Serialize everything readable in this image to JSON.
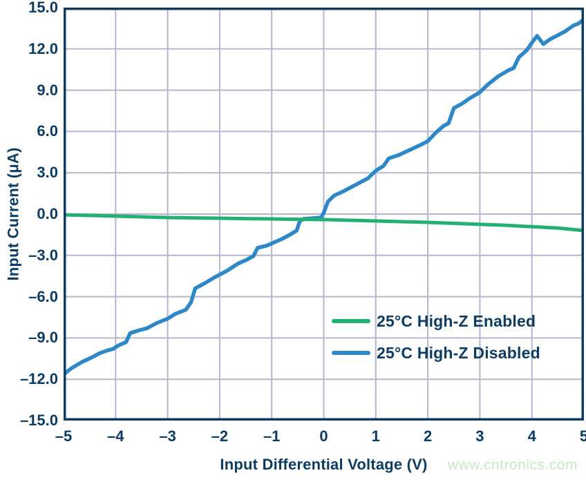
{
  "page": {
    "watermark": "www.cntronics.com"
  },
  "style": {
    "axis_color": "#0d3c63",
    "grid_color": "#b4b7cb",
    "watermark_color": "#c8e8c3",
    "background": "#ffffff"
  },
  "chart_data": {
    "type": "line",
    "title": "",
    "xlabel": "Input Differential Voltage (V)",
    "ylabel": "Input Current (μA)",
    "xlim": [
      -5,
      5
    ],
    "ylim": [
      -15,
      15
    ],
    "grid": true,
    "x_ticks": [
      -5,
      -4,
      -3,
      -2,
      -1,
      0,
      1,
      2,
      3,
      4,
      5
    ],
    "x_tick_labels": [
      "–5",
      "–4",
      "–3",
      "–2",
      "–1",
      "0",
      "1",
      "2",
      "3",
      "4",
      "5"
    ],
    "y_ticks": [
      15,
      12,
      9,
      6,
      3,
      0,
      -3,
      -6,
      -9,
      -12,
      -15
    ],
    "y_tick_labels": [
      "15.0",
      "12.0",
      "9.0",
      "6.0",
      "3.0",
      "0.0",
      "–3.0",
      "–6.0",
      "–9.0",
      "–12.0",
      "–15.0"
    ],
    "legend": {
      "position": "inside-lower-right"
    },
    "series": [
      {
        "name": "25°C High-Z Disabled",
        "color": "#2e87c6",
        "line_width": 5.5,
        "points": [
          [
            -5.0,
            -11.65
          ],
          [
            -4.85,
            -11.2
          ],
          [
            -4.65,
            -10.75
          ],
          [
            -4.45,
            -10.4
          ],
          [
            -4.3,
            -10.1
          ],
          [
            -4.15,
            -9.9
          ],
          [
            -4.05,
            -9.8
          ],
          [
            -3.95,
            -9.55
          ],
          [
            -3.8,
            -9.3
          ],
          [
            -3.72,
            -8.65
          ],
          [
            -3.55,
            -8.45
          ],
          [
            -3.4,
            -8.3
          ],
          [
            -3.2,
            -7.9
          ],
          [
            -3.0,
            -7.6
          ],
          [
            -2.85,
            -7.25
          ],
          [
            -2.65,
            -6.95
          ],
          [
            -2.55,
            -6.4
          ],
          [
            -2.47,
            -5.4
          ],
          [
            -2.3,
            -5.05
          ],
          [
            -2.1,
            -4.6
          ],
          [
            -2.0,
            -4.4
          ],
          [
            -1.85,
            -4.1
          ],
          [
            -1.65,
            -3.6
          ],
          [
            -1.5,
            -3.35
          ],
          [
            -1.35,
            -3.05
          ],
          [
            -1.27,
            -2.45
          ],
          [
            -1.1,
            -2.3
          ],
          [
            -0.95,
            -2.05
          ],
          [
            -0.8,
            -1.8
          ],
          [
            -0.65,
            -1.5
          ],
          [
            -0.52,
            -1.2
          ],
          [
            -0.46,
            -0.5
          ],
          [
            -0.38,
            -0.35
          ],
          [
            -0.2,
            -0.3
          ],
          [
            -0.05,
            -0.25
          ],
          [
            0.0,
            0.1
          ],
          [
            0.08,
            0.9
          ],
          [
            0.2,
            1.35
          ],
          [
            0.35,
            1.6
          ],
          [
            0.5,
            1.9
          ],
          [
            0.7,
            2.3
          ],
          [
            0.85,
            2.6
          ],
          [
            1.0,
            3.15
          ],
          [
            1.15,
            3.5
          ],
          [
            1.25,
            4.05
          ],
          [
            1.45,
            4.3
          ],
          [
            1.65,
            4.65
          ],
          [
            1.85,
            5.0
          ],
          [
            2.0,
            5.3
          ],
          [
            2.15,
            5.9
          ],
          [
            2.3,
            6.4
          ],
          [
            2.4,
            6.6
          ],
          [
            2.5,
            7.7
          ],
          [
            2.65,
            8.0
          ],
          [
            2.8,
            8.4
          ],
          [
            3.0,
            8.85
          ],
          [
            3.15,
            9.4
          ],
          [
            3.35,
            10.0
          ],
          [
            3.55,
            10.45
          ],
          [
            3.65,
            10.6
          ],
          [
            3.75,
            11.4
          ],
          [
            3.9,
            11.9
          ],
          [
            4.0,
            12.45
          ],
          [
            4.1,
            12.95
          ],
          [
            4.22,
            12.35
          ],
          [
            4.35,
            12.7
          ],
          [
            4.5,
            13.0
          ],
          [
            4.65,
            13.3
          ],
          [
            4.8,
            13.7
          ],
          [
            4.9,
            13.85
          ],
          [
            5.0,
            14.15
          ]
        ]
      },
      {
        "name": "25°C High-Z Enabled",
        "color": "#22b173",
        "line_width": 5,
        "points": [
          [
            -5.0,
            -0.05
          ],
          [
            -4.5,
            -0.1
          ],
          [
            -4.0,
            -0.15
          ],
          [
            -3.5,
            -0.2
          ],
          [
            -3.0,
            -0.25
          ],
          [
            -2.5,
            -0.28
          ],
          [
            -2.0,
            -0.3
          ],
          [
            -1.5,
            -0.33
          ],
          [
            -1.0,
            -0.35
          ],
          [
            -0.5,
            -0.38
          ],
          [
            0.0,
            -0.4
          ],
          [
            0.5,
            -0.45
          ],
          [
            1.0,
            -0.5
          ],
          [
            1.5,
            -0.55
          ],
          [
            2.0,
            -0.6
          ],
          [
            2.5,
            -0.67
          ],
          [
            3.0,
            -0.75
          ],
          [
            3.5,
            -0.82
          ],
          [
            4.0,
            -0.92
          ],
          [
            4.5,
            -1.02
          ],
          [
            5.0,
            -1.2
          ]
        ]
      }
    ],
    "legend_order": [
      "25°C High-Z Enabled",
      "25°C High-Z Disabled"
    ]
  }
}
